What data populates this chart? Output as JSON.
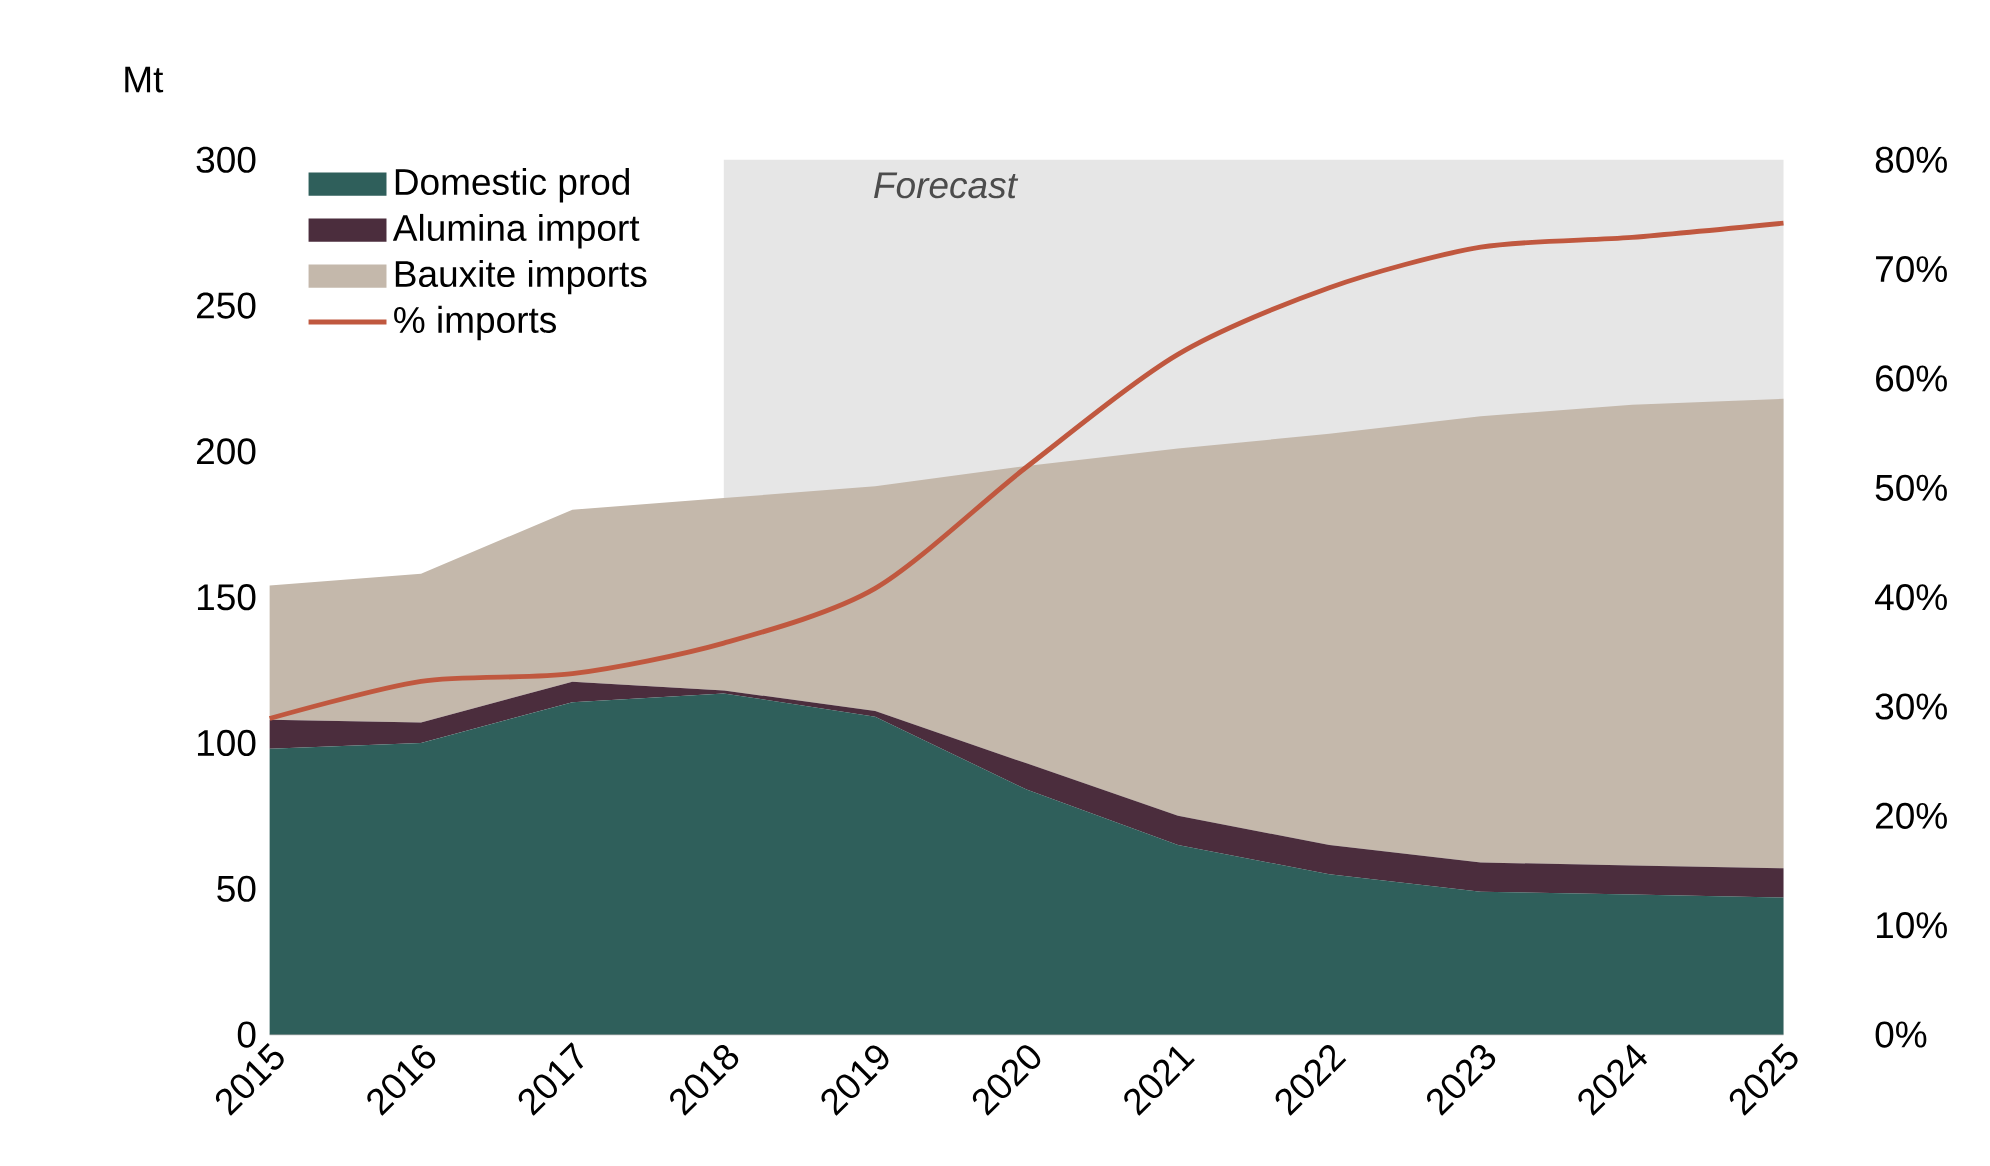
{
  "chart_data": {
    "type": "area",
    "stacked": true,
    "ylabel": "Mt",
    "x": [
      2015,
      2016,
      2017,
      2018,
      2019,
      2020,
      2021,
      2022,
      2023,
      2024,
      2025
    ],
    "xlim": [
      2015,
      2025
    ],
    "xticks": [
      2015,
      2016,
      2017,
      2018,
      2019,
      2020,
      2021,
      2022,
      2023,
      2024,
      2025
    ],
    "ylim": [
      0,
      300
    ],
    "yticks": [
      0,
      50,
      100,
      150,
      200,
      250,
      300
    ],
    "y2lim": [
      0,
      80
    ],
    "y2ticks": [
      {
        "value": 0,
        "label": "0%"
      },
      {
        "value": 10,
        "label": "10%"
      },
      {
        "value": 20,
        "label": "20%"
      },
      {
        "value": 30,
        "label": "30%"
      },
      {
        "value": 40,
        "label": "40%"
      },
      {
        "value": 50,
        "label": "50%"
      },
      {
        "value": 60,
        "label": "60%"
      },
      {
        "value": 70,
        "label": "70%"
      },
      {
        "value": 80,
        "label": "80%"
      }
    ],
    "series": [
      {
        "name": "Domestic prod",
        "color": "#2f5f5b",
        "values": [
          98,
          100,
          114,
          117,
          109,
          84,
          65,
          55,
          49,
          48,
          47
        ]
      },
      {
        "name": "Alumina import",
        "color": "#4b2d3d",
        "values": [
          10,
          7,
          7,
          1,
          2,
          9,
          10,
          10,
          10,
          10,
          10
        ]
      },
      {
        "name": "Bauxite imports",
        "color": "#c4b8ab",
        "values": [
          46,
          51,
          59,
          66,
          77,
          102,
          126,
          141,
          153,
          158,
          161
        ]
      },
      {
        "name": "% imports",
        "type": "line",
        "axis": "y2",
        "color": "#c0583f",
        "values": [
          28.9,
          32.3,
          33,
          35.8,
          40.8,
          51.9,
          62.2,
          68.3,
          72,
          72.9,
          74.2
        ]
      }
    ],
    "bands": [
      {
        "axis": "x",
        "from": 2018,
        "to": 2025,
        "label": "Forecast",
        "color": "#e6e6e6"
      }
    ],
    "legend": "top left",
    "grid": false
  }
}
